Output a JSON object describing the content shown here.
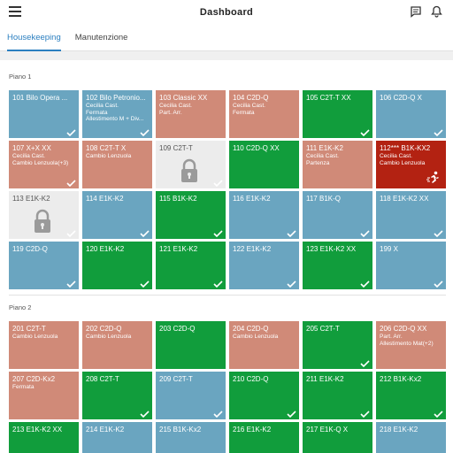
{
  "header": {
    "title": "Dashboard"
  },
  "tabs": [
    {
      "label": "Housekeeping",
      "active": true
    },
    {
      "label": "Manutenzione",
      "active": false
    }
  ],
  "colors": {
    "blue": "#6aa5c0",
    "green": "#119d3c",
    "salmon": "#d08a78",
    "gray": "#ececec",
    "red": "#b32212",
    "accent": "#2b7fc0"
  },
  "floors": [
    {
      "label": "Piano 1",
      "rooms": [
        {
          "number": "101 Bilo Opera ...",
          "color": "blue",
          "lines": [],
          "check": true
        },
        {
          "number": "102 Bilo Petronio...",
          "color": "blue",
          "lines": [
            "Cecilia Cast.",
            "Fermata",
            "Allestimento M + Div..."
          ],
          "check": true
        },
        {
          "number": "103 Classic XX",
          "color": "salmon",
          "lines": [
            "Cecilia Cast.",
            "Part. Arr."
          ],
          "check": false
        },
        {
          "number": "104 C2D-Q",
          "color": "salmon",
          "lines": [
            "Cecilia Cast.",
            "Fermata"
          ],
          "check": false
        },
        {
          "number": "105 C2T-T XX",
          "color": "green",
          "lines": [],
          "check": true
        },
        {
          "number": "106 C2D-Q X",
          "color": "blue",
          "lines": [],
          "check": true
        },
        {
          "number": "107 X+X XX",
          "color": "salmon",
          "lines": [
            "Cecilia Cast.",
            "Cambio Lenzuola(+3)"
          ],
          "check": true
        },
        {
          "number": "108 C2T-T X",
          "color": "salmon",
          "lines": [
            "Cambio Lenzuola"
          ],
          "check": false
        },
        {
          "number": "109 C2T-T",
          "color": "gray",
          "lines": [],
          "check": true,
          "lock": true
        },
        {
          "number": "110 C2D-Q XX",
          "color": "green",
          "lines": [],
          "check": false
        },
        {
          "number": "111 E1K-K2",
          "color": "salmon",
          "lines": [
            "Cecilia Cast.",
            "Partenza"
          ],
          "check": false
        },
        {
          "number": "112*** B1K-KX2",
          "color": "red",
          "lines": [
            "Cecilia Cast.",
            "Cambio Lenzuola"
          ],
          "check": false,
          "runner": true
        },
        {
          "number": "113 E1K-K2",
          "color": "gray",
          "lines": [],
          "check": true,
          "lock": true
        },
        {
          "number": "114 E1K-K2",
          "color": "blue",
          "lines": [],
          "check": true
        },
        {
          "number": "115 B1K-K2",
          "color": "green",
          "lines": [],
          "check": true
        },
        {
          "number": "116 E1K-K2",
          "color": "blue",
          "lines": [],
          "check": true
        },
        {
          "number": "117 B1K-Q",
          "color": "blue",
          "lines": [],
          "check": true
        },
        {
          "number": "118 E1K-K2 XX",
          "color": "blue",
          "lines": [],
          "check": true
        },
        {
          "number": "119 C2D-Q",
          "color": "blue",
          "lines": [],
          "check": true
        },
        {
          "number": "120 E1K-K2",
          "color": "green",
          "lines": [],
          "check": true
        },
        {
          "number": "121 E1K-K2",
          "color": "green",
          "lines": [],
          "check": true
        },
        {
          "number": "122 E1K-K2",
          "color": "blue",
          "lines": [],
          "check": true
        },
        {
          "number": "123 E1K-K2 XX",
          "color": "green",
          "lines": [],
          "check": true
        },
        {
          "number": "199 X",
          "color": "blue",
          "lines": [],
          "check": true
        }
      ]
    },
    {
      "label": "Piano 2",
      "rooms": [
        {
          "number": "201 C2T-T",
          "color": "salmon",
          "lines": [
            "Cambio Lenzuola"
          ],
          "check": false
        },
        {
          "number": "202 C2D-Q",
          "color": "salmon",
          "lines": [
            "Cambio Lenzuola"
          ],
          "check": false
        },
        {
          "number": "203 C2D-Q",
          "color": "green",
          "lines": [],
          "check": false
        },
        {
          "number": "204 C2D-Q",
          "color": "salmon",
          "lines": [
            "Cambio Lenzuola"
          ],
          "check": false
        },
        {
          "number": "205 C2T-T",
          "color": "green",
          "lines": [],
          "check": true
        },
        {
          "number": "206 C2D-Q XX",
          "color": "salmon",
          "lines": [
            "Part. Arr.",
            "Allestimento Mat(+2)"
          ],
          "check": false
        },
        {
          "number": "207 C2D-Kx2",
          "color": "salmon",
          "lines": [
            "Fermata"
          ],
          "check": false
        },
        {
          "number": "208 C2T-T",
          "color": "green",
          "lines": [],
          "check": true
        },
        {
          "number": "209 C2T-T",
          "color": "blue",
          "lines": [],
          "check": true
        },
        {
          "number": "210 C2D-Q",
          "color": "green",
          "lines": [],
          "check": true
        },
        {
          "number": "211 E1K-K2",
          "color": "green",
          "lines": [],
          "check": true
        },
        {
          "number": "212 B1K-Kx2",
          "color": "green",
          "lines": [],
          "check": true
        },
        {
          "number": "213 E1K-K2 XX",
          "color": "green",
          "lines": [],
          "check": false
        },
        {
          "number": "214 E1K-K2",
          "color": "blue",
          "lines": [],
          "check": false
        },
        {
          "number": "215 B1K-Kx2",
          "color": "blue",
          "lines": [],
          "check": false
        },
        {
          "number": "216 E1K-K2",
          "color": "green",
          "lines": [],
          "check": false
        },
        {
          "number": "217 E1K-Q X",
          "color": "green",
          "lines": [],
          "check": false
        },
        {
          "number": "218 E1K-K2",
          "color": "blue",
          "lines": [],
          "check": false
        }
      ]
    }
  ]
}
